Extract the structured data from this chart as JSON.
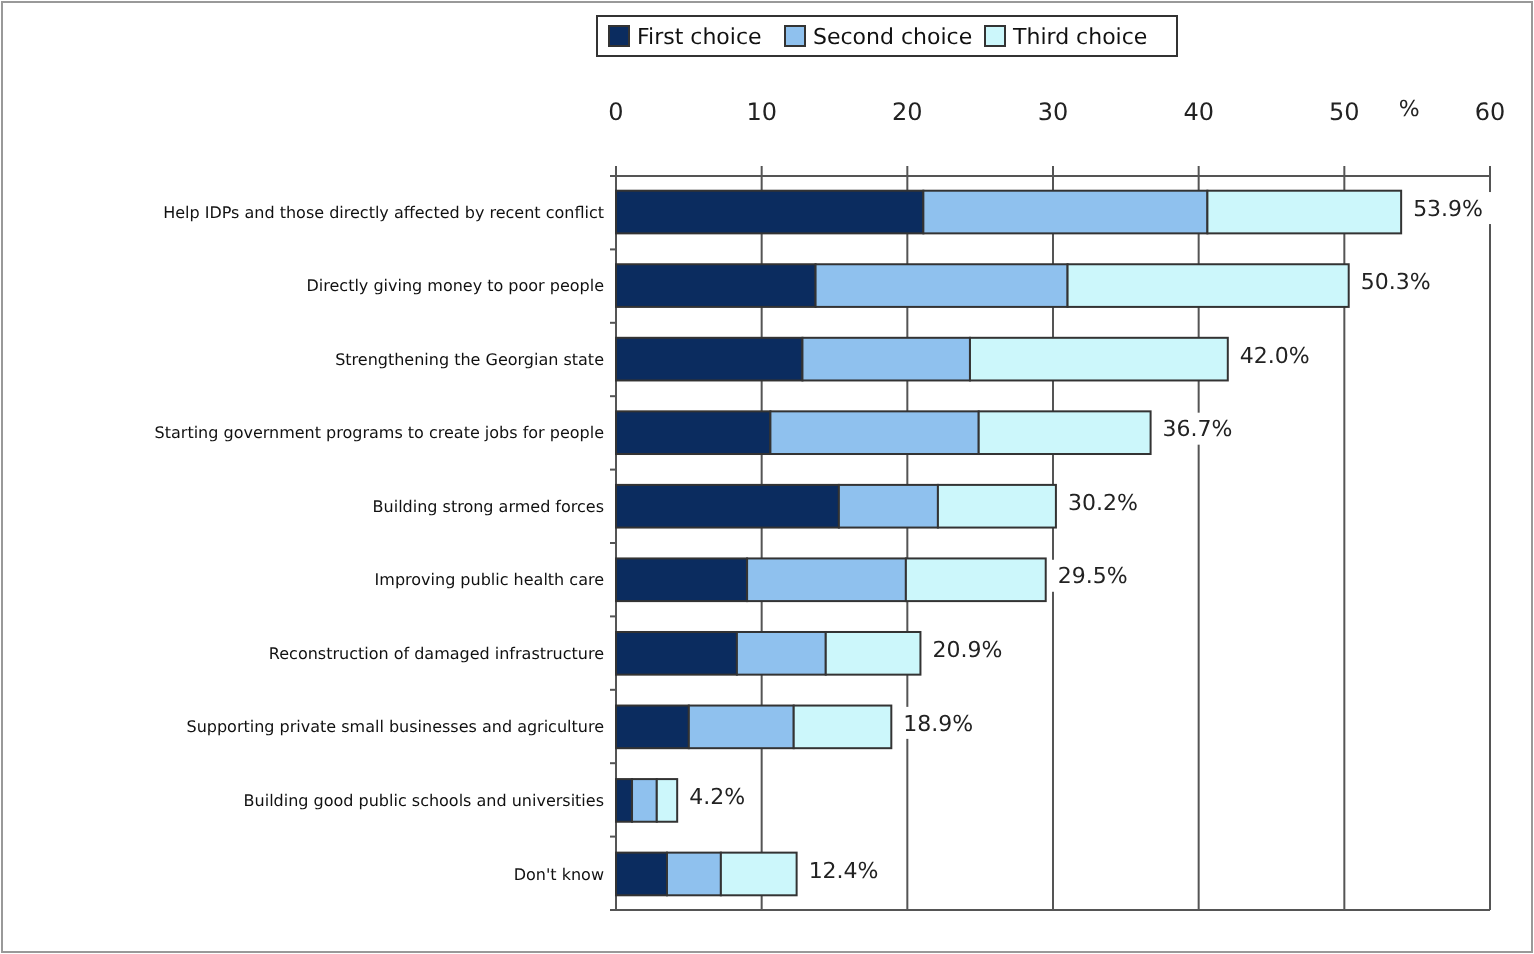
{
  "chart_data": {
    "type": "bar",
    "orientation": "horizontal",
    "stacked": true,
    "xlabel": "%",
    "categories": [
      "Help IDPs and those directly affected by recent conflict",
      "Directly giving money to poor people",
      "Strengthening the Georgian state",
      "Starting government programs to create jobs for people",
      "Building strong armed forces",
      "Improving public health care",
      "Reconstruction of damaged infrastructure",
      "Supporting private small businesses and agriculture",
      "Building good public schools and universities",
      "Don't know"
    ],
    "series": [
      {
        "name": "First choice",
        "color": "#0b2c5f",
        "values": [
          21.1,
          13.7,
          12.8,
          10.6,
          15.3,
          9.0,
          8.3,
          5.0,
          1.1,
          3.5
        ]
      },
      {
        "name": "Second choice",
        "color": "#8fc1ee",
        "values": [
          19.5,
          17.3,
          11.5,
          14.3,
          6.8,
          10.9,
          6.1,
          7.2,
          1.7,
          3.7
        ]
      },
      {
        "name": "Third choice",
        "color": "#ccf7fb",
        "values": [
          13.3,
          19.3,
          17.7,
          11.8,
          8.1,
          9.6,
          6.5,
          6.7,
          1.4,
          5.2
        ]
      }
    ],
    "totals": [
      "53.9%",
      "50.3%",
      "42.0%",
      "36.7%",
      "30.2%",
      "29.5%",
      "20.9%",
      "18.9%",
      "4.2%",
      "12.4%"
    ],
    "xlim": [
      0,
      60
    ],
    "xticks": [
      0,
      10,
      20,
      30,
      40,
      50,
      60
    ],
    "grid": "x",
    "legend": "top"
  }
}
